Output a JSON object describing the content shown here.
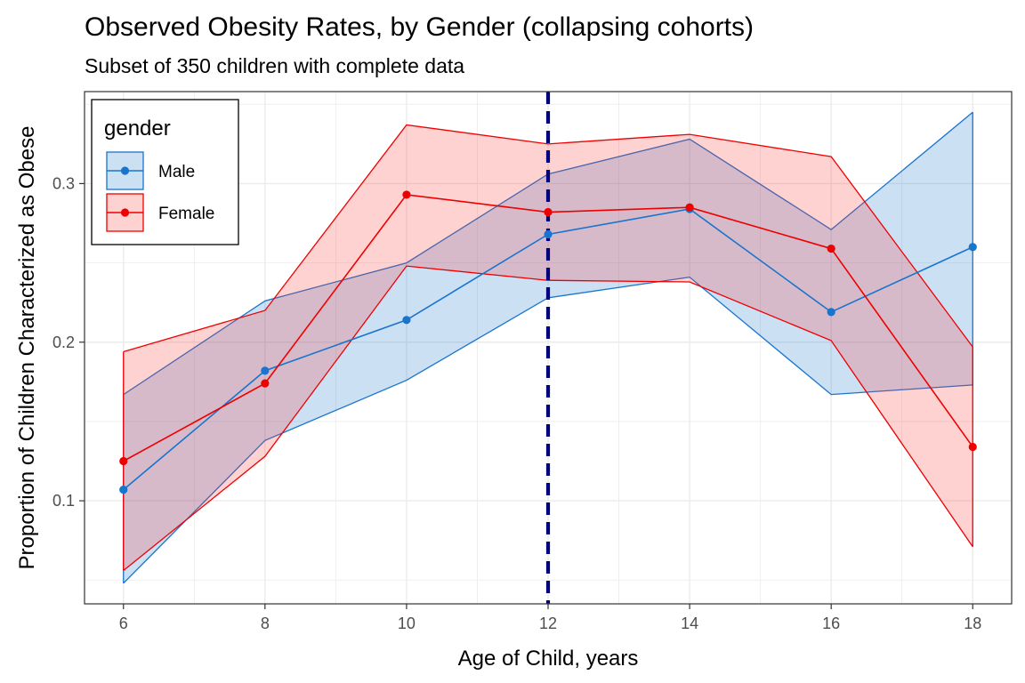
{
  "chart_data": {
    "type": "line",
    "title": "Observed Obesity Rates, by Gender (collapsing cohorts)",
    "subtitle": "Subset of 350 children with complete data",
    "xlabel": "Age of Child, years",
    "ylabel": "Proportion of Children Characterized as Obese",
    "x": [
      6,
      8,
      10,
      12,
      14,
      16,
      18
    ],
    "xlim": [
      5.45,
      18.55
    ],
    "ylim": [
      0.035,
      0.358
    ],
    "x_ticks": [
      6,
      8,
      10,
      12,
      14,
      16,
      18
    ],
    "y_ticks": [
      0.1,
      0.2,
      0.3
    ],
    "y_tick_labels": [
      "0.1",
      "0.2",
      "0.3"
    ],
    "grid": true,
    "reference_line": {
      "x": 12,
      "style": "dashed",
      "color": "#00007F"
    },
    "legend": {
      "title": "gender",
      "position": "top-left"
    },
    "series": [
      {
        "name": "Male",
        "color": "#1874CD",
        "fill": "#1874CD",
        "values": [
          0.107,
          0.182,
          0.214,
          0.268,
          0.284,
          0.219,
          0.26
        ],
        "lower": [
          0.048,
          0.138,
          0.176,
          0.228,
          0.241,
          0.167,
          0.173
        ],
        "upper": [
          0.167,
          0.226,
          0.25,
          0.306,
          0.328,
          0.271,
          0.345
        ]
      },
      {
        "name": "Female",
        "color": "#EE0000",
        "fill": "#FF3030",
        "values": [
          0.125,
          0.174,
          0.293,
          0.282,
          0.285,
          0.259,
          0.134
        ],
        "lower": [
          0.056,
          0.128,
          0.248,
          0.239,
          0.238,
          0.201,
          0.071
        ],
        "upper": [
          0.194,
          0.22,
          0.337,
          0.325,
          0.331,
          0.317,
          0.197
        ]
      }
    ]
  }
}
